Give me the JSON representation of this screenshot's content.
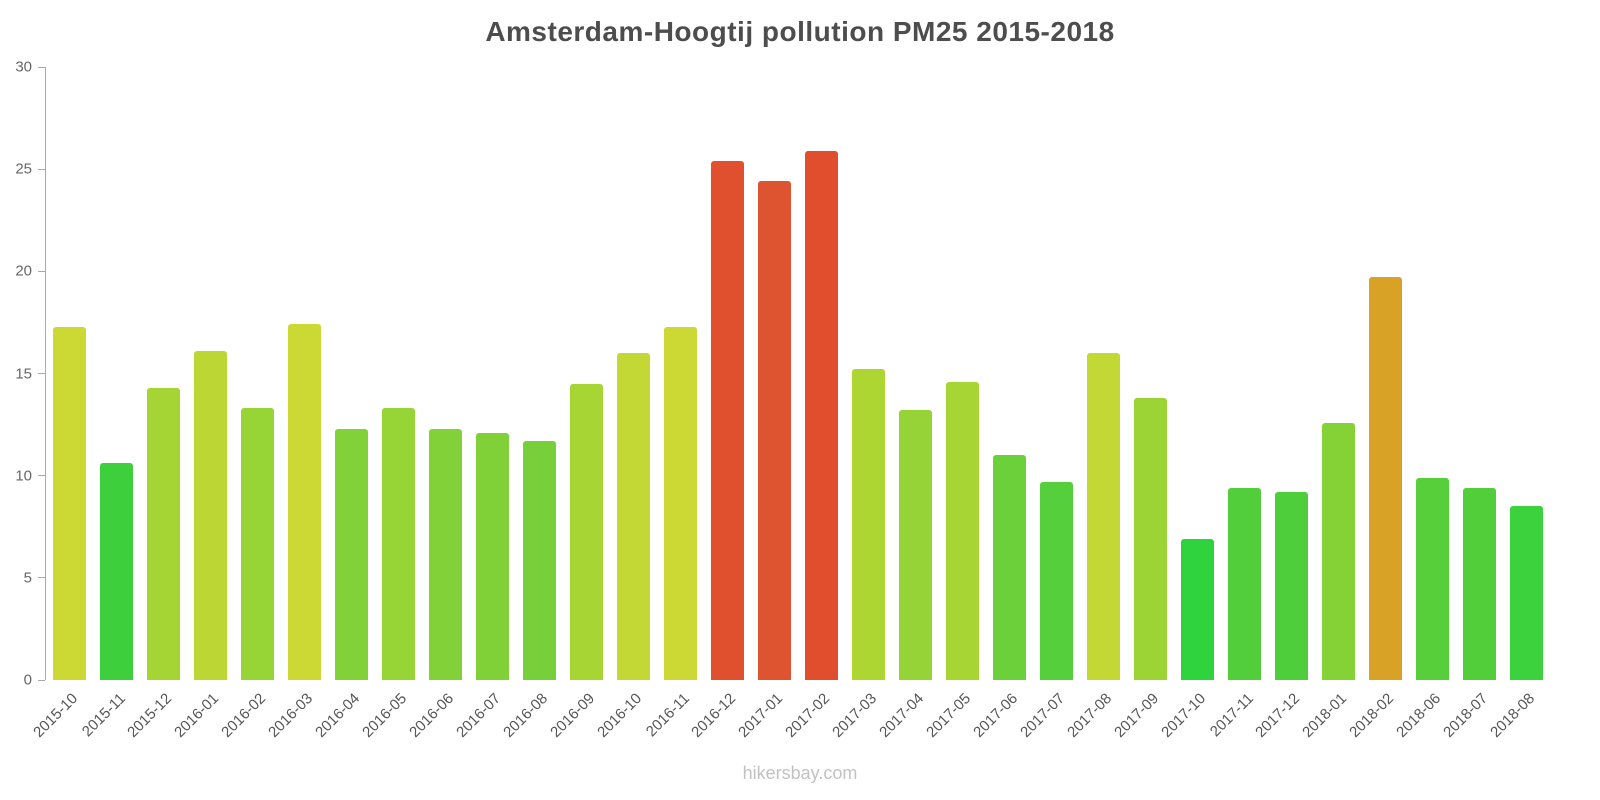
{
  "title": "Amsterdam-Hoogtij pollution PM25 2015-2018",
  "footer": "hikersbay.com",
  "chart_data": {
    "type": "bar",
    "title": "Amsterdam-Hoogtij pollution PM25 2015-2018",
    "xlabel": "",
    "ylabel": "",
    "ylim": [
      0,
      30
    ],
    "yticks": [
      0,
      5,
      10,
      15,
      20,
      25,
      30
    ],
    "grid": false,
    "legend": "none",
    "categories": [
      "2015-10",
      "2015-11",
      "2015-12",
      "2016-01",
      "2016-02",
      "2016-03",
      "2016-04",
      "2016-05",
      "2016-06",
      "2016-07",
      "2016-08",
      "2016-09",
      "2016-10",
      "2016-11",
      "2016-12",
      "2017-01",
      "2017-02",
      "2017-03",
      "2017-04",
      "2017-05",
      "2017-06",
      "2017-07",
      "2017-08",
      "2017-09",
      "2017-10",
      "2017-11",
      "2017-12",
      "2018-01",
      "2018-02",
      "2018-06",
      "2018-07",
      "2018-08"
    ],
    "values": [
      17.3,
      10.6,
      14.3,
      16.1,
      13.3,
      17.4,
      12.3,
      13.3,
      12.3,
      12.1,
      11.7,
      14.5,
      16.0,
      17.3,
      25.4,
      24.4,
      25.9,
      15.2,
      13.2,
      14.6,
      11.0,
      9.7,
      16.0,
      13.8,
      6.9,
      9.4,
      9.2,
      12.6,
      19.7,
      9.9,
      9.4,
      8.5
    ],
    "colors": [
      "#ccd935",
      "#3ed03c",
      "#a4d534",
      "#bcd733",
      "#97d436",
      "#ccd935",
      "#82d138",
      "#97d436",
      "#82d138",
      "#80d138",
      "#77d039",
      "#a6d534",
      "#c3d834",
      "#ccd935",
      "#e0502f",
      "#df5430",
      "#e14e2e",
      "#aed633",
      "#96d336",
      "#a7d534",
      "#6cd03a",
      "#55cf3b",
      "#c3d834",
      "#9cd435",
      "#2ed33e",
      "#52ce3b",
      "#4fce3c",
      "#85d237",
      "#d8a227",
      "#57cf3b",
      "#52ce3b",
      "#3bd23d"
    ],
    "axis_color": "#aaaaaa",
    "title_color": "#4d4d4d",
    "footer_color": "#c2c2c2"
  }
}
